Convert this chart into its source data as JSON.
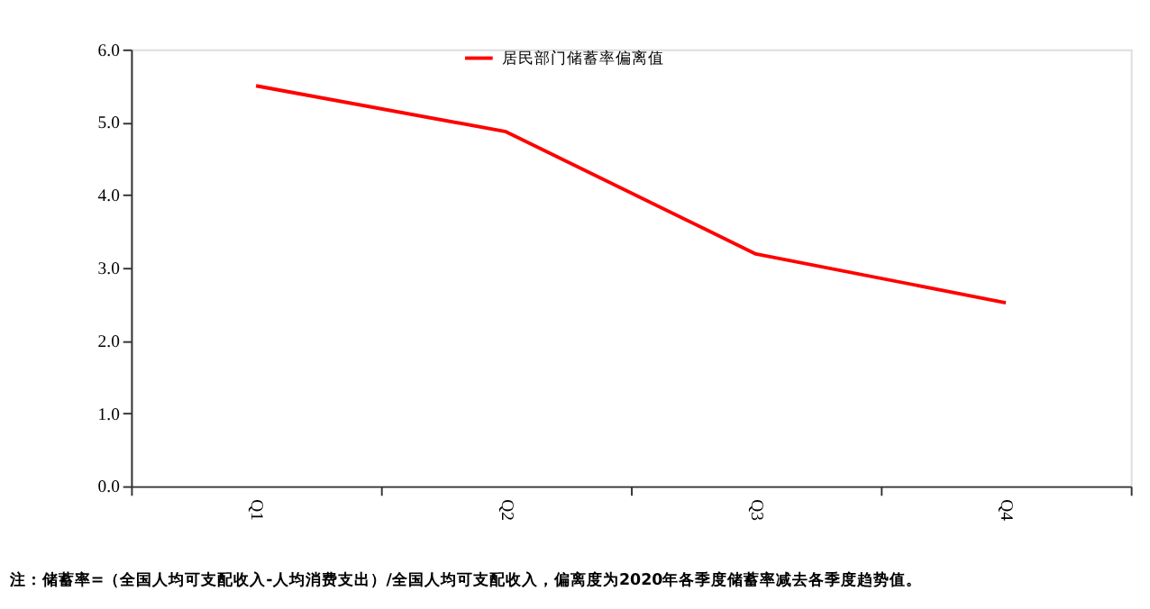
{
  "chart_data": {
    "type": "line",
    "categories": [
      "Q1",
      "Q2",
      "Q3",
      "Q4"
    ],
    "series": [
      {
        "name": "居民部门储蓄率偏离值",
        "color": "#ff0000",
        "values": [
          5.5,
          4.87,
          3.19,
          2.52
        ]
      }
    ],
    "ylim": [
      0,
      6
    ],
    "yticks": [
      {
        "value": 0,
        "label": "0.0"
      },
      {
        "value": 1,
        "label": "1.0"
      },
      {
        "value": 2,
        "label": "2.0"
      },
      {
        "value": 3,
        "label": "3.0"
      },
      {
        "value": 4,
        "label": "4.0"
      },
      {
        "value": 5,
        "label": "5.0"
      },
      {
        "value": 6,
        "label": "6.0"
      }
    ],
    "grid": false,
    "legend": "top",
    "marker": "none",
    "line_style": "solid",
    "annotations": [
      "注：储蓄率=（全国人均可支配收入-人均消费支出）/全国人均可支配收入，偏离度为2020年各季度储蓄率减去各季度趋势值。"
    ]
  }
}
